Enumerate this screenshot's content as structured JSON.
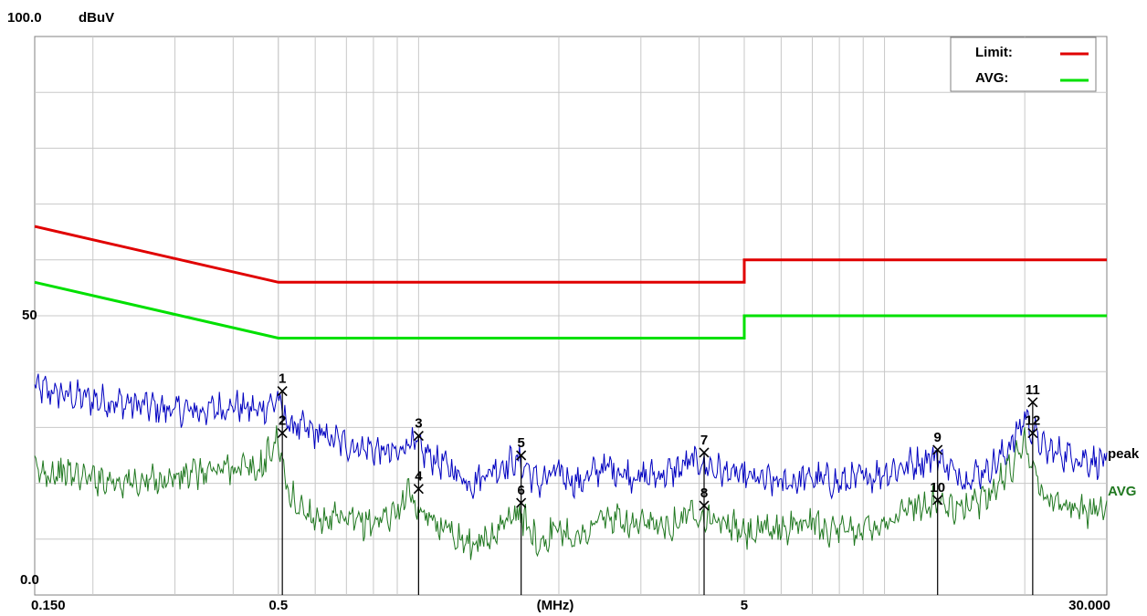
{
  "chart_data": {
    "type": "line",
    "y_top_label": "100.0",
    "y_unit_label": "dBuV",
    "y_mid_label": "50",
    "y_bottom_label": "0.0",
    "ylim": [
      0,
      100
    ],
    "xlim": [
      0.15,
      30
    ],
    "x_scale": "log",
    "x_tick_labels": [
      {
        "value": 0.15,
        "text": "0.150"
      },
      {
        "value": 0.5,
        "text": "0.5"
      },
      {
        "value": 5,
        "text": "5"
      },
      {
        "value": 30,
        "text": "30.000"
      }
    ],
    "x_unit_label": "(MHz)",
    "grid": true,
    "legend_position": "top-right",
    "legend": [
      {
        "label": "Limit:",
        "color": "#e00000"
      },
      {
        "label": "AVG:",
        "color": "#00e000"
      }
    ],
    "limit_lines": [
      {
        "name": "Limit:",
        "color": "#e00000",
        "points": [
          [
            0.15,
            66
          ],
          [
            0.5,
            56
          ],
          [
            5,
            56
          ],
          [
            5,
            60
          ],
          [
            30,
            60
          ]
        ]
      },
      {
        "name": "AVG:",
        "color": "#00e000",
        "points": [
          [
            0.15,
            56
          ],
          [
            0.5,
            46
          ],
          [
            5,
            46
          ],
          [
            5,
            50
          ],
          [
            30,
            50
          ]
        ]
      }
    ],
    "series": [
      {
        "name": "peak",
        "color": "#0000c0",
        "x": [
          0.15,
          0.17,
          0.2,
          0.25,
          0.3,
          0.35,
          0.4,
          0.45,
          0.5,
          0.52,
          0.55,
          0.6,
          0.7,
          0.8,
          0.9,
          0.95,
          1.0,
          1.1,
          1.2,
          1.3,
          1.4,
          1.5,
          1.6,
          1.7,
          1.8,
          2.0,
          2.2,
          2.5,
          3.0,
          3.5,
          3.9,
          4.5,
          5,
          6,
          7,
          8,
          9,
          10,
          11,
          12,
          13,
          14,
          15,
          16,
          17,
          18,
          19,
          20,
          22,
          25,
          28,
          30
        ],
        "values": [
          37,
          36,
          35,
          34,
          33,
          33,
          34,
          33,
          35,
          31,
          30,
          29,
          27,
          26,
          25,
          28,
          26,
          24,
          22,
          20,
          22,
          23,
          24,
          23,
          20,
          22,
          20,
          23,
          21,
          22,
          24,
          22,
          21,
          20,
          21,
          20,
          21,
          22,
          23,
          24,
          25,
          22,
          21,
          22,
          23,
          25,
          28,
          32,
          26,
          25,
          24,
          24
        ]
      },
      {
        "name": "AVG",
        "color": "#207820",
        "x": [
          0.15,
          0.17,
          0.2,
          0.25,
          0.3,
          0.35,
          0.4,
          0.45,
          0.5,
          0.52,
          0.55,
          0.6,
          0.7,
          0.8,
          0.9,
          0.95,
          1.0,
          1.1,
          1.2,
          1.3,
          1.4,
          1.5,
          1.6,
          1.7,
          1.8,
          2.0,
          2.2,
          2.5,
          3.0,
          3.5,
          3.9,
          4.5,
          5,
          6,
          7,
          8,
          9,
          10,
          11,
          12,
          13,
          14,
          15,
          16,
          17,
          18,
          19,
          20,
          22,
          25,
          28,
          30
        ],
        "values": [
          22,
          22,
          21,
          20,
          21,
          22,
          23,
          22,
          28,
          19,
          16,
          14,
          13,
          13,
          15,
          19,
          14,
          13,
          11,
          9,
          10,
          12,
          15,
          13,
          9,
          12,
          10,
          14,
          12,
          13,
          15,
          13,
          11,
          12,
          13,
          11,
          12,
          13,
          15,
          16,
          17,
          15,
          16,
          17,
          19,
          21,
          24,
          28,
          17,
          16,
          15,
          16
        ]
      }
    ],
    "series_end_labels": [
      "peak",
      "AVG"
    ],
    "markers": [
      {
        "id": "1",
        "x": 0.51,
        "y": 36.5,
        "series": "peak"
      },
      {
        "id": "2",
        "x": 0.51,
        "y": 29,
        "series": "AVG"
      },
      {
        "id": "3",
        "x": 1.0,
        "y": 28.5,
        "series": "peak"
      },
      {
        "id": "4",
        "x": 1.0,
        "y": 19,
        "series": "AVG"
      },
      {
        "id": "5",
        "x": 1.66,
        "y": 25,
        "series": "peak"
      },
      {
        "id": "6",
        "x": 1.66,
        "y": 16.5,
        "series": "AVG"
      },
      {
        "id": "7",
        "x": 4.1,
        "y": 25.5,
        "series": "peak"
      },
      {
        "id": "8",
        "x": 4.1,
        "y": 16,
        "series": "AVG"
      },
      {
        "id": "9",
        "x": 13.0,
        "y": 26,
        "series": "peak"
      },
      {
        "id": "10",
        "x": 13.0,
        "y": 17,
        "series": "AVG"
      },
      {
        "id": "11",
        "x": 20.8,
        "y": 34.5,
        "series": "peak"
      },
      {
        "id": "12",
        "x": 20.8,
        "y": 29,
        "series": "AVG"
      }
    ]
  }
}
